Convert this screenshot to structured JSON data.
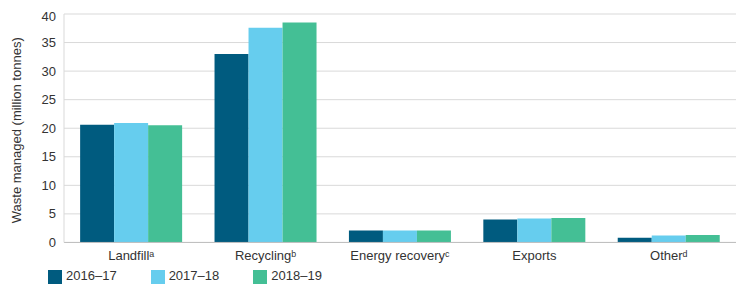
{
  "chart_data": {
    "type": "bar",
    "y_label": "Waste managed (million tonnes)",
    "categories": [
      "Landfillᵃ",
      "Recyclingᵇ",
      "Energy recoveryᶜ",
      "Exports",
      "Otherᵈ"
    ],
    "series": [
      {
        "name": "2016–17",
        "color": "#005b7f",
        "values": [
          20.6,
          33.0,
          2.1,
          4.0,
          0.8
        ]
      },
      {
        "name": "2017–18",
        "color": "#66cdee",
        "values": [
          20.9,
          37.6,
          2.1,
          4.2,
          1.2
        ]
      },
      {
        "name": "2018–19",
        "color": "#44bf95",
        "values": [
          20.5,
          38.5,
          2.1,
          4.3,
          1.3
        ]
      }
    ],
    "ylim": [
      0,
      40
    ],
    "yticks": [
      0,
      5,
      10,
      15,
      20,
      25,
      30,
      35,
      40
    ],
    "grid": true,
    "legend": "bottom-left"
  }
}
